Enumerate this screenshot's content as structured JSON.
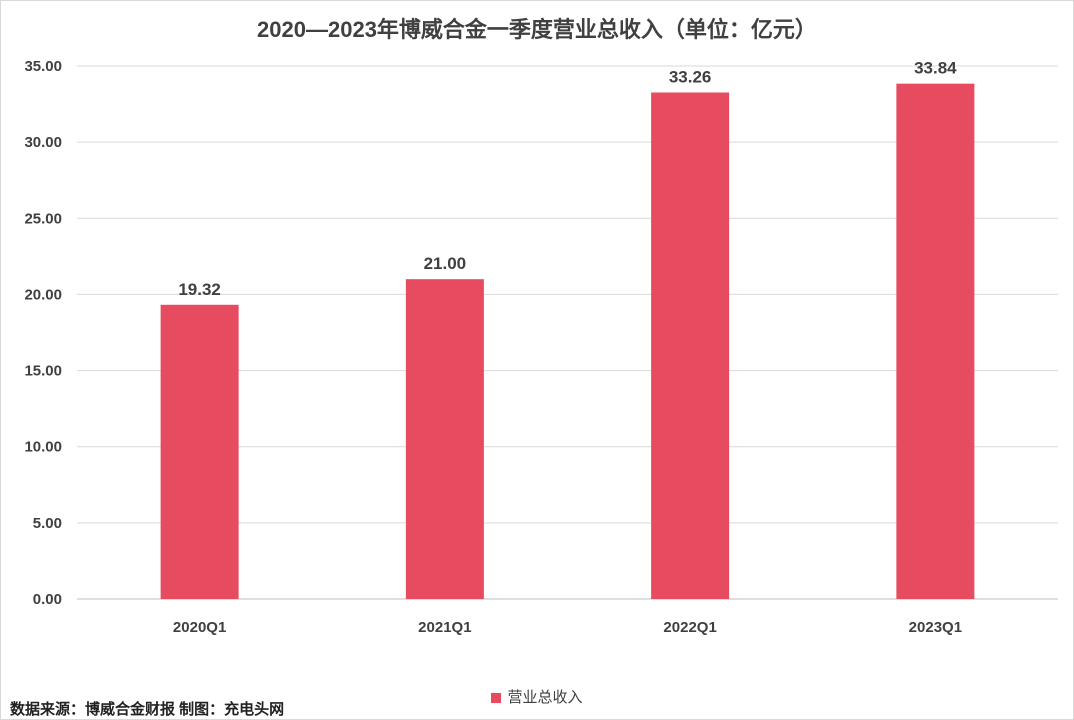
{
  "chart_data": {
    "type": "bar",
    "title": "2020—2023年博威合金一季度营业总收入（单位：亿元）",
    "categories": [
      "2020Q1",
      "2021Q1",
      "2022Q1",
      "2023Q1"
    ],
    "series": [
      {
        "name": "营业总收入",
        "values": [
          19.32,
          21.0,
          33.26,
          33.84
        ],
        "color": "#e64b5f"
      }
    ],
    "data_labels": [
      "19.32",
      "21.00",
      "33.26",
      "33.84"
    ],
    "ylim": [
      0,
      35
    ],
    "yticks": [
      0,
      5,
      10,
      15,
      20,
      25,
      30,
      35
    ],
    "ytick_labels": [
      "0.00",
      "5.00",
      "10.00",
      "15.00",
      "20.00",
      "25.00",
      "30.00",
      "35.00"
    ],
    "xlabel": "",
    "ylabel": "",
    "grid": true,
    "legend_position": "bottom-center"
  },
  "footer": {
    "source_text": "数据来源：博威合金财报  制图：充电头网"
  }
}
